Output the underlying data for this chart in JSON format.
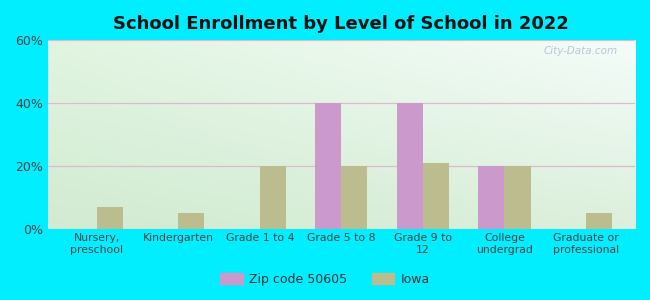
{
  "title": "School Enrollment by Level of School in 2022",
  "categories": [
    "Nursery,\npreschool",
    "Kindergarten",
    "Grade 1 to 4",
    "Grade 5 to 8",
    "Grade 9 to\n12",
    "College\nundergrad",
    "Graduate or\nprofessional"
  ],
  "zip_values": [
    0,
    0,
    0,
    40,
    40,
    20,
    0
  ],
  "iowa_values": [
    7,
    5,
    20,
    20,
    21,
    20,
    5
  ],
  "zip_color": "#cc99cc",
  "iowa_color": "#bbbd8e",
  "background_color": "#00eeff",
  "plot_bg_top_left": "#d4ead0",
  "plot_bg_top_right": "#e8f5f8",
  "plot_bg_bottom": "#daecd4",
  "ylim": [
    0,
    60
  ],
  "yticks": [
    0,
    20,
    40,
    60
  ],
  "ytick_labels": [
    "0%",
    "20%",
    "40%",
    "60%"
  ],
  "legend_zip_label": "Zip code 50605",
  "legend_iowa_label": "Iowa",
  "bar_width": 0.32,
  "watermark": "City-Data.com",
  "grid_color": "#ddbbcc",
  "tick_color": "#444444",
  "title_color": "#111111"
}
